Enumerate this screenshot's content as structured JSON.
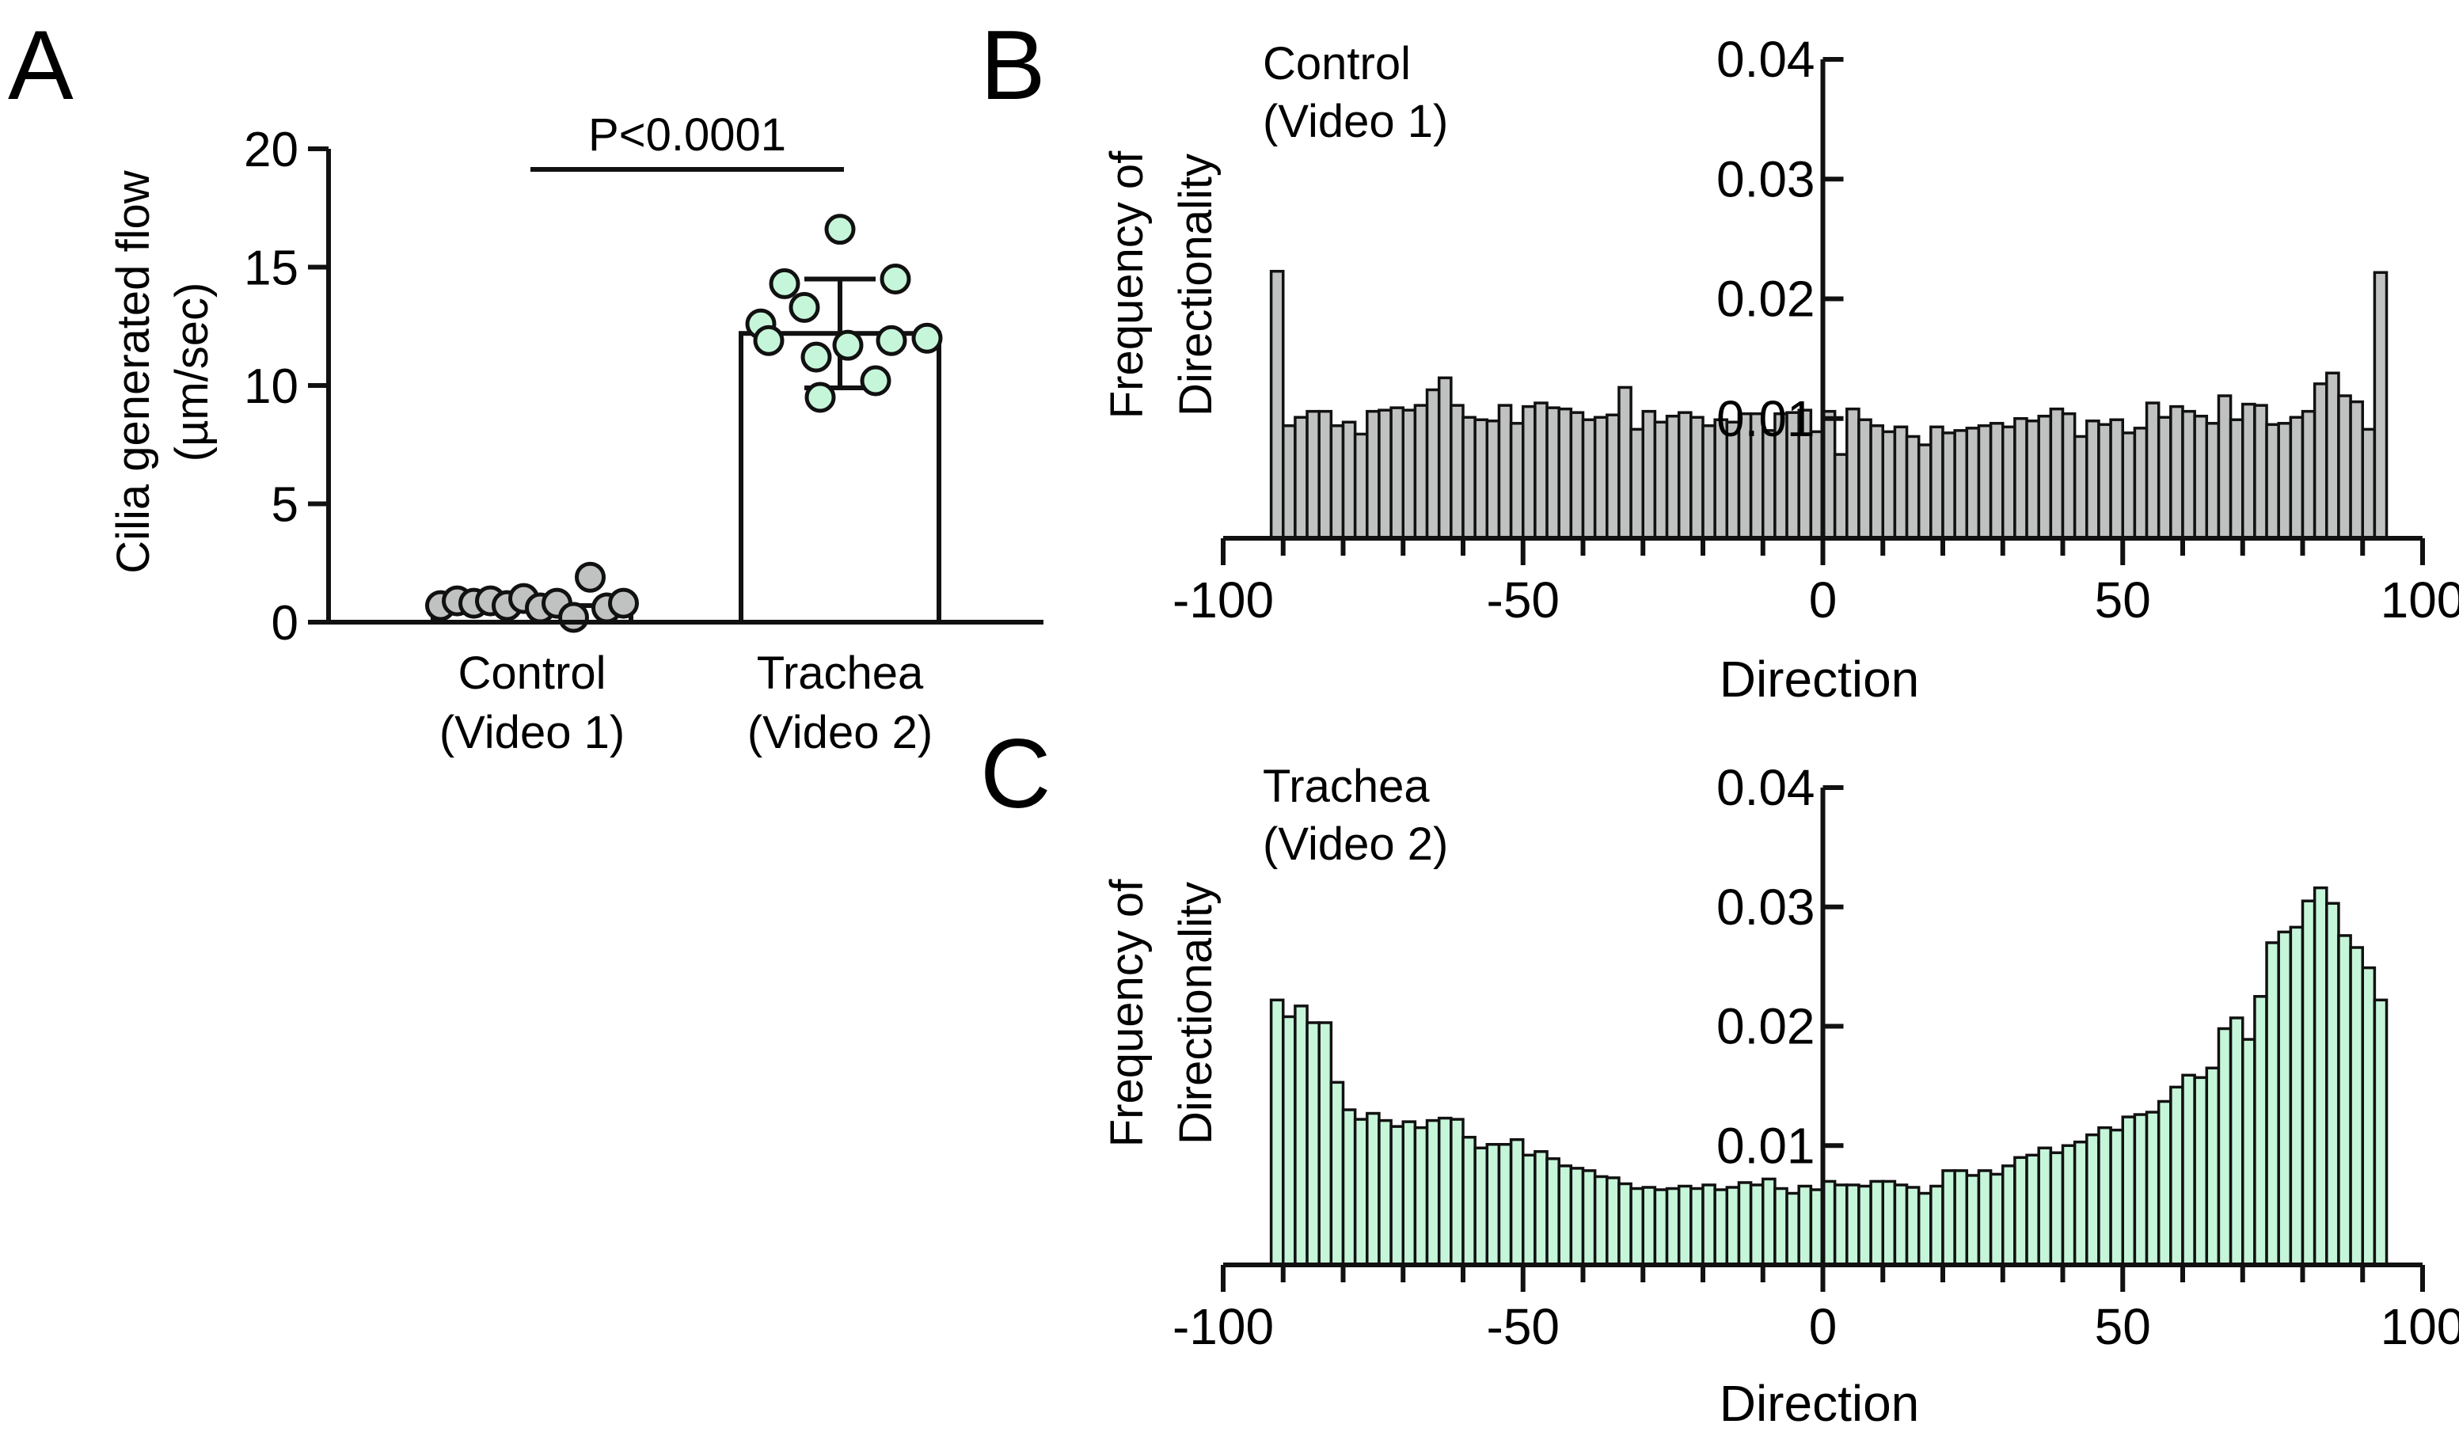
{
  "panel_labels": {
    "a": "A",
    "b": "B",
    "c": "C"
  },
  "colors": {
    "control_fill": "#c0c1c1",
    "trachea_fill": "#c6f6d9",
    "bar_fill": "#ffffff",
    "stroke": "#111111"
  },
  "chart_data": [
    {
      "id": "A",
      "type": "bar",
      "title": "",
      "ylabel_line1": "Cilia generated flow",
      "ylabel_line2": "(µm/sec)",
      "xlabel": "",
      "ylim": [
        0,
        20
      ],
      "yticks": [
        "0",
        "5",
        "10",
        "15",
        "20"
      ],
      "categories": [
        {
          "line1": "Control",
          "line2": "(Video 1)"
        },
        {
          "line1": "Trachea",
          "line2": "(Video 2)"
        }
      ],
      "significance": "P<0.0001",
      "groups": [
        {
          "mean": 0.7,
          "sd": 0.0,
          "points": [
            0.7,
            0.9,
            0.8,
            0.9,
            0.7,
            1.0,
            0.6,
            0.8,
            0.2,
            1.9,
            0.6,
            0.8
          ]
        },
        {
          "mean": 12.2,
          "sd": 2.3,
          "points": [
            16.6,
            14.3,
            14.5,
            13.3,
            12.6,
            11.9,
            12.0,
            11.9,
            11.7,
            11.2,
            10.2,
            9.5
          ]
        }
      ]
    },
    {
      "id": "B",
      "type": "bar",
      "series_label_line1": "Control",
      "series_label_line2": "(Video 1)",
      "xlabel": "Direction",
      "ylabel_line1": "Frequency of",
      "ylabel_line2": "Directionality",
      "xlim": [
        -100,
        100
      ],
      "ylim": [
        0,
        0.04
      ],
      "xticks": [
        "-100",
        "-50",
        "0",
        "50",
        "100"
      ],
      "yticks": [
        "0.01",
        "0.02",
        "0.03",
        "0.04"
      ],
      "bin_start": -91,
      "bin_width": 2,
      "values": [
        0.0223,
        0.0094,
        0.0101,
        0.0106,
        0.0106,
        0.0094,
        0.0097,
        0.0087,
        0.0106,
        0.0107,
        0.0109,
        0.0107,
        0.0111,
        0.0124,
        0.0134,
        0.0111,
        0.0101,
        0.0099,
        0.0098,
        0.0111,
        0.0096,
        0.011,
        0.0113,
        0.0109,
        0.0108,
        0.0105,
        0.0099,
        0.0101,
        0.0103,
        0.0126,
        0.0091,
        0.0106,
        0.0097,
        0.0102,
        0.0105,
        0.0101,
        0.0094,
        0.0099,
        0.0097,
        0.0104,
        0.0104,
        0.009,
        0.0104,
        0.0105,
        0.0107,
        0.0089,
        0.0106,
        0.007,
        0.0108,
        0.0099,
        0.0094,
        0.0089,
        0.0093,
        0.0085,
        0.0078,
        0.0093,
        0.0088,
        0.009,
        0.0092,
        0.0094,
        0.0096,
        0.0093,
        0.01,
        0.0098,
        0.0102,
        0.0108,
        0.0104,
        0.0085,
        0.0098,
        0.0095,
        0.0099,
        0.0088,
        0.0092,
        0.0113,
        0.0101,
        0.011,
        0.0106,
        0.0102,
        0.0096,
        0.0119,
        0.0099,
        0.0112,
        0.0111,
        0.0095,
        0.0096,
        0.0101,
        0.0106,
        0.0129,
        0.0138,
        0.0119,
        0.0114,
        0.0091,
        0.0222
      ]
    },
    {
      "id": "C",
      "type": "bar",
      "series_label_line1": "Trachea",
      "series_label_line2": "(Video 2)",
      "xlabel": "Direction",
      "ylabel_line1": "Frequency of",
      "ylabel_line2": "Directionality",
      "xlim": [
        -100,
        100
      ],
      "ylim": [
        0,
        0.04
      ],
      "xticks": [
        "-100",
        "-50",
        "0",
        "50",
        "100"
      ],
      "yticks": [
        "0.01",
        "0.02",
        "0.03",
        "0.04"
      ],
      "bin_start": -91,
      "bin_width": 2,
      "values": [
        0.0222,
        0.0208,
        0.0217,
        0.0203,
        0.0203,
        0.0153,
        0.013,
        0.0122,
        0.0127,
        0.0121,
        0.0116,
        0.012,
        0.0115,
        0.0121,
        0.0123,
        0.0122,
        0.0107,
        0.0098,
        0.0101,
        0.0101,
        0.0105,
        0.0092,
        0.0095,
        0.0089,
        0.0083,
        0.0081,
        0.0079,
        0.0074,
        0.0073,
        0.0068,
        0.0064,
        0.0065,
        0.0063,
        0.0064,
        0.0066,
        0.0064,
        0.0067,
        0.0063,
        0.0065,
        0.0069,
        0.0067,
        0.0072,
        0.0064,
        0.006,
        0.0066,
        0.0063,
        0.007,
        0.0067,
        0.0067,
        0.0066,
        0.007,
        0.007,
        0.0067,
        0.0065,
        0.006,
        0.0066,
        0.0079,
        0.0079,
        0.0075,
        0.0079,
        0.0076,
        0.0083,
        0.009,
        0.0092,
        0.0098,
        0.0094,
        0.01,
        0.0103,
        0.0109,
        0.0115,
        0.0113,
        0.0124,
        0.0126,
        0.0128,
        0.0137,
        0.0149,
        0.0159,
        0.0157,
        0.0165,
        0.0198,
        0.0207,
        0.0189,
        0.0225,
        0.027,
        0.0279,
        0.0283,
        0.0305,
        0.0316,
        0.0303,
        0.0276,
        0.0266,
        0.0249,
        0.0222
      ]
    }
  ]
}
